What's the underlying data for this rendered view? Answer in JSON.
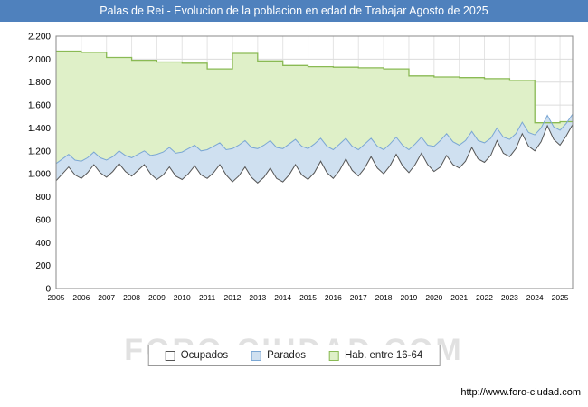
{
  "title_bar": {
    "text": "Palas de Rei - Evolucion de la poblacion en edad de Trabajar Agosto de 2025",
    "bg": "#4f81bd"
  },
  "watermark": "FORO-CIUDAD.COM",
  "footer": {
    "url": "http://www.foro-ciudad.com"
  },
  "legend": [
    {
      "label": "Ocupados",
      "fill": "#ffffff",
      "stroke": "#555555"
    },
    {
      "label": "Parados",
      "fill": "#cfe0f0",
      "stroke": "#7ba7d4"
    },
    {
      "label": "Hab. entre 16-64",
      "fill": "#dff0c8",
      "stroke": "#8aba54"
    }
  ],
  "chart_data": {
    "type": "area",
    "title": "Palas de Rei - Evolucion de la poblacion en edad de Trabajar Agosto de 2025",
    "xlabel": "",
    "ylabel": "",
    "grid": true,
    "legend_position": "bottom",
    "ylim": [
      0,
      2200
    ],
    "y_tick_step": 200,
    "x_start_year": 2005,
    "x_end": 2025.5,
    "samples_per_year": 4,
    "x_ticks": [
      2005,
      2006,
      2007,
      2008,
      2009,
      2010,
      2011,
      2012,
      2013,
      2014,
      2015,
      2016,
      2017,
      2018,
      2019,
      2020,
      2021,
      2022,
      2023,
      2024,
      2025
    ],
    "series": [
      {
        "name": "Ocupados",
        "type": "area",
        "fill": "#ffffff",
        "stroke": "#555555",
        "values": [
          940,
          1000,
          1060,
          990,
          960,
          1010,
          1080,
          1010,
          970,
          1020,
          1090,
          1020,
          980,
          1030,
          1080,
          1000,
          950,
          990,
          1060,
          980,
          950,
          1000,
          1070,
          990,
          960,
          1010,
          1080,
          990,
          930,
          980,
          1060,
          970,
          920,
          970,
          1050,
          960,
          930,
          990,
          1080,
          990,
          950,
          1010,
          1110,
          1010,
          960,
          1030,
          1130,
          1030,
          980,
          1050,
          1150,
          1050,
          1000,
          1070,
          1170,
          1070,
          1010,
          1080,
          1180,
          1080,
          1020,
          1060,
          1160,
          1080,
          1050,
          1110,
          1230,
          1130,
          1100,
          1160,
          1290,
          1180,
          1150,
          1220,
          1350,
          1240,
          1200,
          1280,
          1420,
          1300,
          1250,
          1330,
          1430
        ]
      },
      {
        "name": "Parados",
        "type": "area-stacked-on-Ocupados",
        "fill": "#cfe0f0",
        "stroke": "#7ba7d4",
        "values": [
          150,
          130,
          110,
          130,
          150,
          130,
          110,
          130,
          150,
          130,
          110,
          140,
          160,
          140,
          120,
          160,
          220,
          200,
          170,
          200,
          240,
          220,
          180,
          210,
          250,
          230,
          190,
          220,
          290,
          270,
          230,
          260,
          300,
          280,
          240,
          270,
          290,
          270,
          220,
          250,
          270,
          250,
          200,
          230,
          250,
          230,
          180,
          210,
          230,
          210,
          160,
          190,
          210,
          190,
          150,
          180,
          200,
          180,
          140,
          170,
          220,
          230,
          190,
          200,
          200,
          180,
          140,
          160,
          170,
          150,
          110,
          140,
          150,
          130,
          100,
          120,
          140,
          120,
          90,
          110,
          130,
          110,
          90
        ]
      },
      {
        "name": "Hab. entre 16-64",
        "type": "step-area",
        "fill": "#dff0c8",
        "stroke": "#8aba54",
        "years": [
          2005,
          2006,
          2007,
          2008,
          2009,
          2010,
          2011,
          2012,
          2013,
          2014,
          2015,
          2016,
          2017,
          2018,
          2019,
          2020,
          2021,
          2022,
          2023,
          2024,
          2025
        ],
        "values": [
          2070,
          2060,
          2015,
          1990,
          1975,
          1965,
          1915,
          2050,
          1985,
          1945,
          1935,
          1930,
          1925,
          1915,
          1855,
          1845,
          1840,
          1830,
          1815,
          1445,
          1455
        ]
      }
    ]
  }
}
